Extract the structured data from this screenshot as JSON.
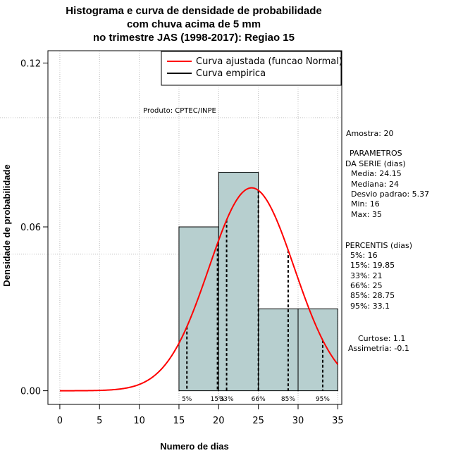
{
  "chart_data": {
    "type": "bar",
    "title_lines": [
      "Histograma e curva de densidade de probabilidade",
      "com chuva acima de 5 mm",
      "no trimestre JAS (1998-2017): Regiao 15"
    ],
    "xlabel": "Numero de dias",
    "ylabel": "Densidade de probabilidade",
    "xlim": [
      -1.5,
      35.5
    ],
    "ylim": [
      -0.005,
      0.1245
    ],
    "x_ticks": [
      0,
      5,
      10,
      15,
      20,
      25,
      30,
      35
    ],
    "x_tick_labels": [
      "0",
      "5",
      "10",
      "15",
      "20",
      "25",
      "30",
      "35"
    ],
    "y_ticks": [
      0.0,
      0.06,
      0.12
    ],
    "y_tick_labels": [
      "0.00",
      "0.06",
      "0.12"
    ],
    "grid_x": [
      0,
      5,
      10,
      15,
      20,
      25,
      30,
      35
    ],
    "grid_y": [
      0.05,
      0.1
    ],
    "histogram": {
      "bins": [
        [
          15,
          20
        ],
        [
          20,
          25
        ],
        [
          25,
          30
        ],
        [
          30,
          35
        ]
      ],
      "densities": [
        0.06,
        0.08,
        0.03,
        0.03
      ],
      "fill": "#b7cfcf"
    },
    "normal_curve": {
      "mean": 24.15,
      "sd": 5.37,
      "x_from": 0,
      "x_to": 35,
      "color": "#ff0000"
    },
    "percentile_lines": [
      {
        "label": "5%",
        "value": 16
      },
      {
        "label": "15%",
        "value": 19.85
      },
      {
        "label": "33%",
        "value": 21
      },
      {
        "label": "66%",
        "value": 25
      },
      {
        "label": "85%",
        "value": 28.75
      },
      {
        "label": "95%",
        "value": 33.1
      }
    ],
    "legend": [
      {
        "label": "Curva ajustada (funcao Normal)",
        "color": "#ff0000"
      },
      {
        "label": "Curva empirica",
        "color": "#000000"
      }
    ],
    "product_note": "Produto: CPTEC/INPE"
  },
  "stats_panel": {
    "amostra": "Amostra: 20",
    "parametros_title": "PARAMETROS",
    "parametros_subtitle": "DA SERIE (dias)",
    "parametros": [
      "Media: 24.15",
      "Mediana: 24",
      "Desvio padrao: 5.37",
      "Min: 16",
      "Max: 35"
    ],
    "percentis_title": "PERCENTIS (dias)",
    "percentis": [
      "5%: 16",
      "15%: 19.85",
      "33%: 21",
      "66%: 25",
      "85%: 28.75",
      "95%: 33.1"
    ],
    "curtose": "Curtose: 1.1",
    "assimetria": "Assimetria: -0.1"
  }
}
